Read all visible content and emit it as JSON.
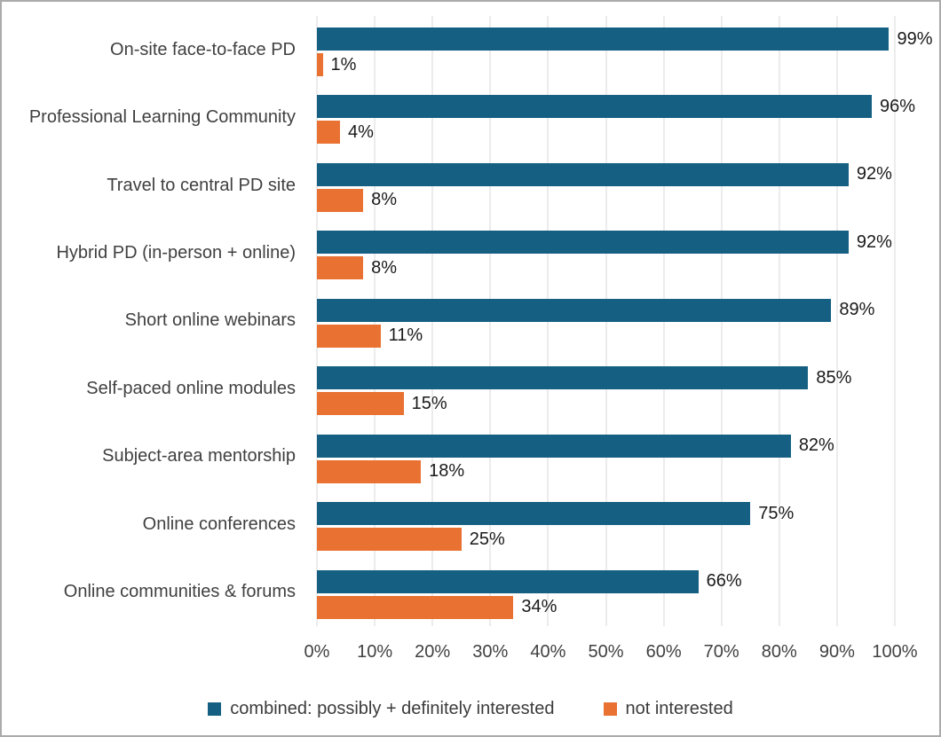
{
  "chart_data": {
    "type": "bar",
    "orientation": "horizontal",
    "title": "",
    "xlabel": "",
    "ylabel": "",
    "categories": [
      "On-site face-to-face PD",
      "Professional Learning Community",
      "Travel to central PD site",
      "Hybrid PD (in-person + online)",
      "Short online webinars",
      "Self-paced online modules",
      "Subject-area mentorship",
      "Online conferences",
      "Online communities & forums"
    ],
    "series": [
      {
        "name": "combined: possibly + definitely interested",
        "color": "#156082",
        "values": [
          99,
          96,
          92,
          92,
          89,
          85,
          82,
          75,
          66
        ],
        "labels": [
          "99%",
          "96%",
          "92%",
          "92%",
          "89%",
          "85%",
          "82%",
          "75%",
          "66%"
        ]
      },
      {
        "name": "not interested",
        "color": "#E97132",
        "values": [
          1,
          4,
          8,
          8,
          11,
          15,
          18,
          25,
          34
        ],
        "labels": [
          "1%",
          "4%",
          "8%",
          "8%",
          "11%",
          "15%",
          "18%",
          "25%",
          "34%"
        ]
      }
    ],
    "xlim": [
      0,
      100
    ],
    "x_ticks": [
      "0%",
      "10%",
      "20%",
      "30%",
      "40%",
      "50%",
      "60%",
      "70%",
      "80%",
      "90%",
      "100%"
    ],
    "grid": "vertical",
    "legend_position": "bottom"
  },
  "colors": {
    "series_interested": "#156082",
    "series_not_interested": "#E97132",
    "gridline": "#D9D9D9",
    "frame_border": "#ABABAB",
    "category_text": "#404040",
    "value_text": "#1A1A1A",
    "background": "#FFFFFF"
  }
}
